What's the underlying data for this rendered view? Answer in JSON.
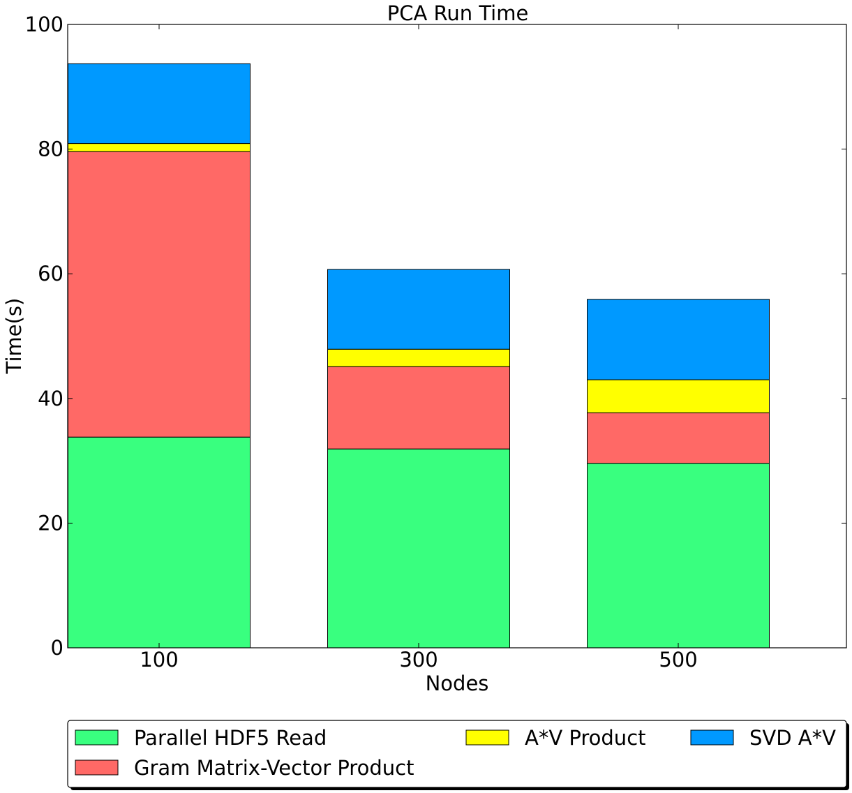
{
  "chart_data": {
    "type": "bar",
    "stacked": true,
    "title": "PCA Run Time",
    "xlabel": "Nodes",
    "ylabel": "Time(s)",
    "categories": [
      "100",
      "300",
      "500"
    ],
    "ylim": [
      0,
      100
    ],
    "yticks": [
      0,
      20,
      40,
      60,
      80,
      100
    ],
    "grid": false,
    "legend_position": "bottom",
    "series": [
      {
        "name": "Parallel HDF5 Read",
        "color": "#39ff7f",
        "values": [
          33.8,
          31.9,
          29.6
        ]
      },
      {
        "name": "Gram Matrix-Vector Product",
        "color": "#ff6966",
        "values": [
          45.8,
          13.2,
          8.1
        ]
      },
      {
        "name": "A*V Product",
        "color": "#ffff00",
        "values": [
          1.3,
          2.8,
          5.3
        ]
      },
      {
        "name": "SVD A*V",
        "color": "#0099ff",
        "values": [
          12.8,
          12.8,
          12.9
        ]
      }
    ]
  }
}
